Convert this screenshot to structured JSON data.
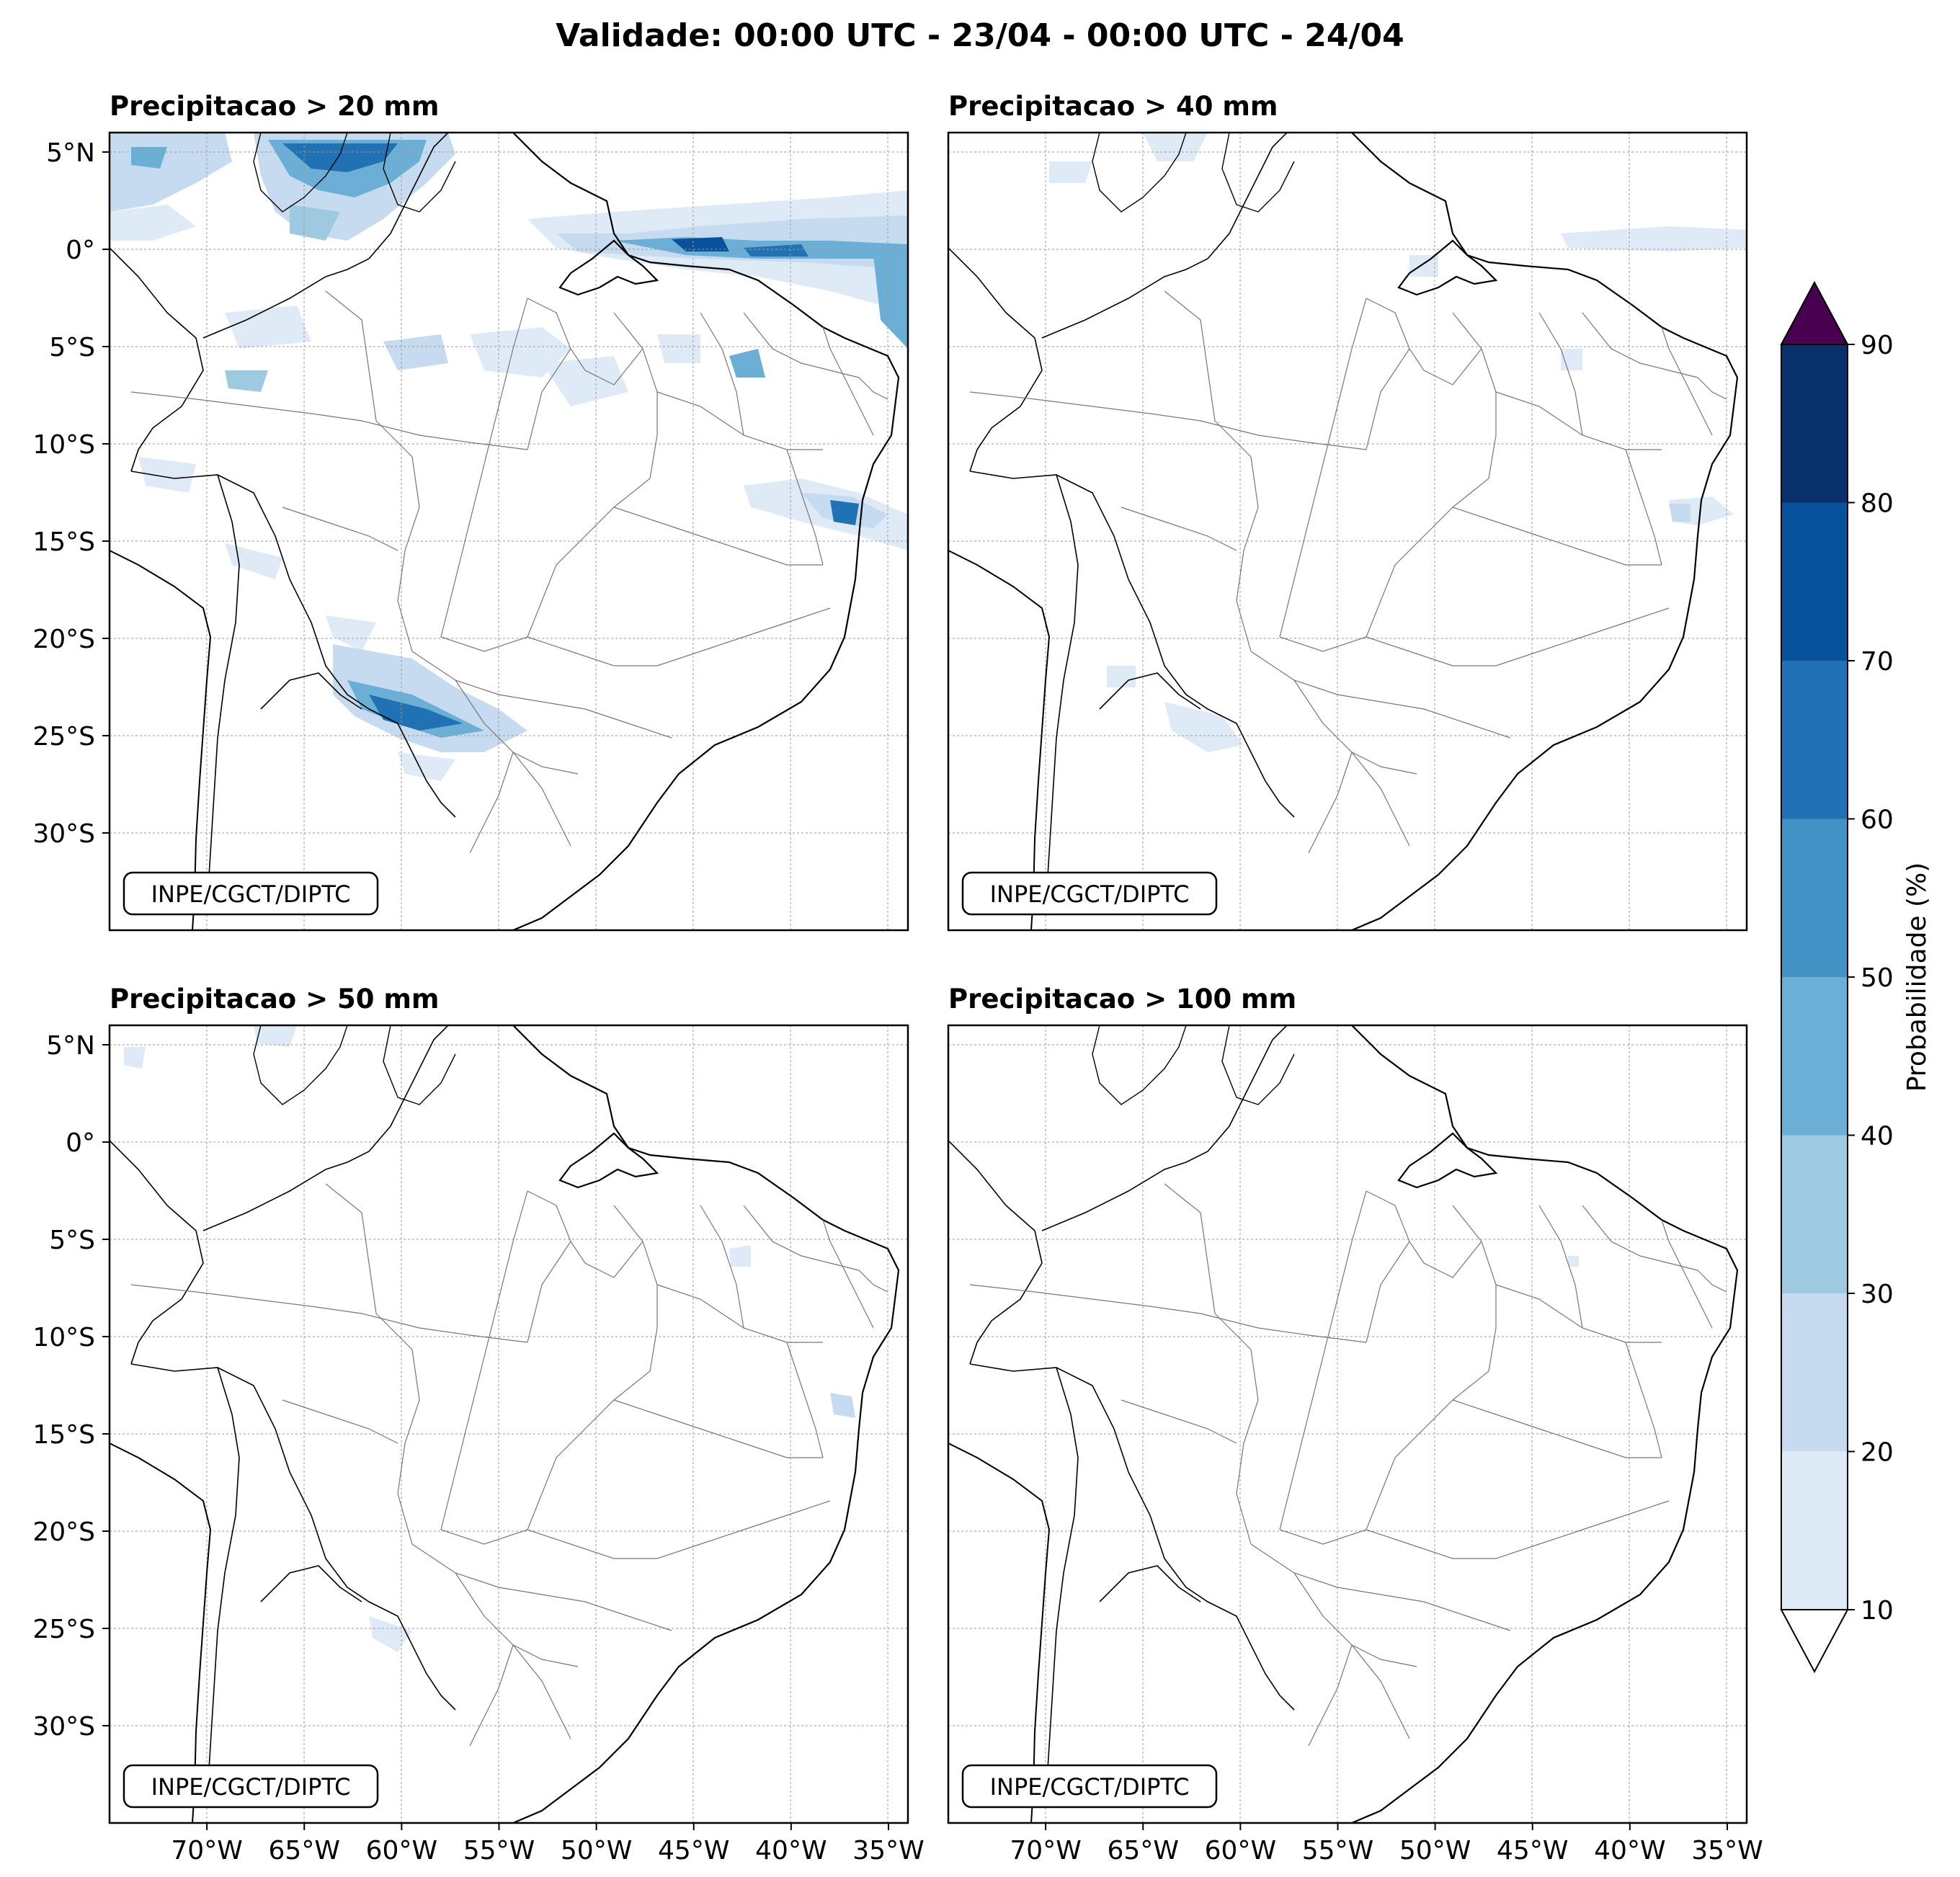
{
  "title": "Validade: 00:00 UTC - 23/04 - 00:00 UTC - 24/04",
  "panels": [
    {
      "title": "Precipitacao > 20 mm",
      "credit": "INPE/CGCT/DIPTC"
    },
    {
      "title": "Precipitacao > 40 mm",
      "credit": "INPE/CGCT/DIPTC"
    },
    {
      "title": "Precipitacao > 50 mm",
      "credit": "INPE/CGCT/DIPTC"
    },
    {
      "title": "Precipitacao > 100 mm",
      "credit": "INPE/CGCT/DIPTC"
    }
  ],
  "axes": {
    "lat_ticks": [
      "5°N",
      "0°",
      "5°S",
      "10°S",
      "15°S",
      "20°S",
      "25°S",
      "30°S"
    ],
    "lat_values": [
      5,
      0,
      -5,
      -10,
      -15,
      -20,
      -25,
      -30
    ],
    "lon_ticks": [
      "70°W",
      "65°W",
      "60°W",
      "55°W",
      "50°W",
      "45°W",
      "40°W",
      "35°W"
    ],
    "lon_values": [
      -70,
      -65,
      -60,
      -55,
      -50,
      -45,
      -40,
      -35
    ],
    "lon_range": [
      -75,
      -34
    ],
    "lat_range": [
      -35,
      6
    ]
  },
  "colorbar": {
    "label": "Probabilidade (%)",
    "tick_labels": [
      "10",
      "20",
      "30",
      "40",
      "50",
      "60",
      "70",
      "80",
      "90"
    ],
    "levels": [
      10,
      20,
      30,
      40,
      50,
      60,
      70,
      80,
      90
    ],
    "colors": [
      "#deebf7",
      "#c6dbef",
      "#9ecae1",
      "#6baed6",
      "#4292c6",
      "#2171b5",
      "#08519c",
      "#08306b"
    ],
    "over_color": "#4a0050",
    "under_color": "#ffffff"
  }
}
